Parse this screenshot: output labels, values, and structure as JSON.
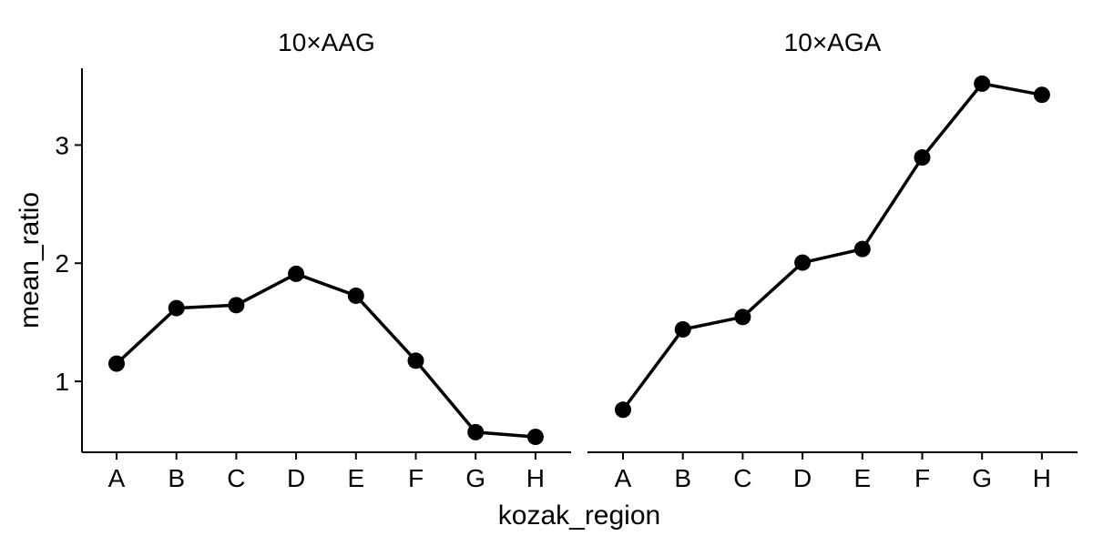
{
  "chart_data": {
    "type": "line",
    "xlabel": "kozak_region",
    "ylabel": "mean_ratio",
    "ylim": [
      0.4,
      3.65
    ],
    "y_ticks": [
      1,
      2,
      3
    ],
    "y_tick_labels": [
      "1",
      "2",
      "3"
    ],
    "categories": [
      "A",
      "B",
      "C",
      "D",
      "E",
      "F",
      "G",
      "H"
    ],
    "grid": false,
    "legend": "none",
    "colors": {
      "line": "#000000",
      "point": "#000000"
    },
    "panels": [
      {
        "title": "10×AAG",
        "values": [
          1.15,
          1.62,
          1.645,
          1.91,
          1.725,
          1.175,
          0.57,
          0.53
        ]
      },
      {
        "title": "10×AGA",
        "values": [
          0.76,
          1.44,
          1.545,
          2.005,
          2.12,
          2.895,
          3.52,
          3.425
        ]
      }
    ]
  }
}
